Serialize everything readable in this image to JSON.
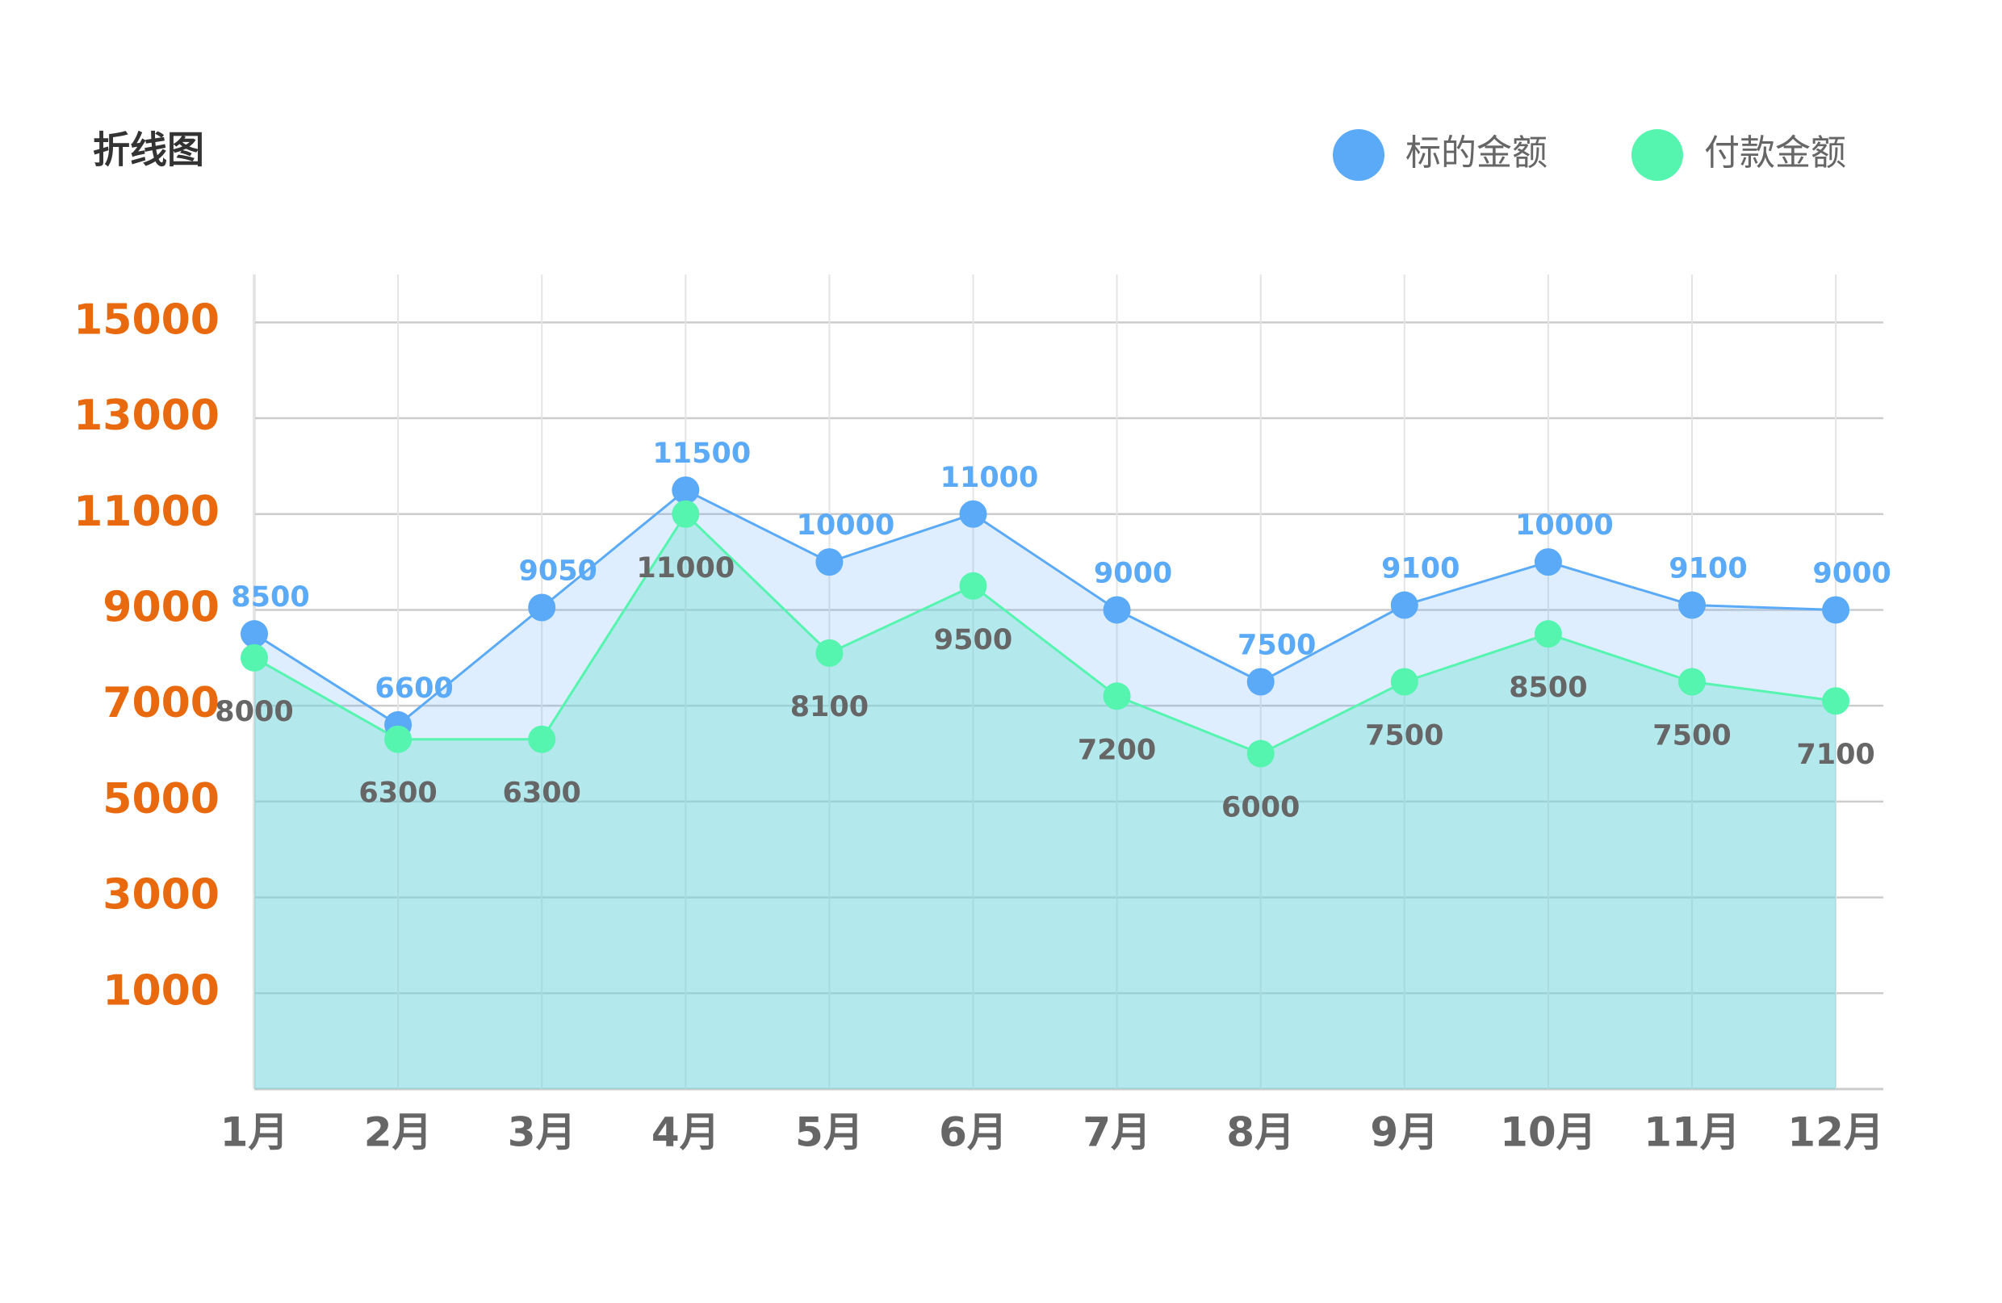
{
  "chart_data": {
    "type": "line",
    "title": "折线图",
    "categories": [
      "1月",
      "2月",
      "3月",
      "4月",
      "5月",
      "6月",
      "7月",
      "8月",
      "9月",
      "10月",
      "11月",
      "12月"
    ],
    "series": [
      {
        "name": "标的金额",
        "color": "#5aaaf8",
        "values": [
          8500,
          6600,
          9050,
          11500,
          10000,
          11000,
          9000,
          7500,
          9100,
          10000,
          9100,
          9000
        ]
      },
      {
        "name": "付款金额",
        "color": "#55f5b0",
        "values": [
          8000,
          6300,
          6300,
          11000,
          8100,
          9500,
          7200,
          6000,
          7500,
          8500,
          7500,
          7100
        ]
      }
    ],
    "ylim": [
      -1000,
      16000
    ],
    "yticks": [
      1000,
      3000,
      5000,
      7000,
      9000,
      11000,
      13000,
      15000
    ],
    "grid": true,
    "area": true,
    "legend": "top-right"
  }
}
